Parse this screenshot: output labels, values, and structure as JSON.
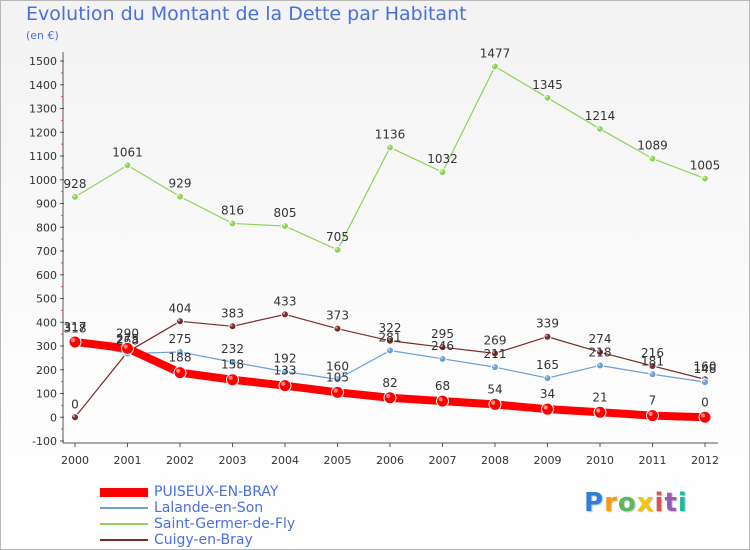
{
  "title": "Evolution du Montant de la Dette par Habitant",
  "subtitle": "(en €)",
  "logo": {
    "text": "Proxiti",
    "colors": [
      "#2f7ed8",
      "#f39c12",
      "#5cb85c",
      "#f1c40f",
      "#d9534f",
      "#9b59b6",
      "#1abc9c"
    ]
  },
  "chart_data": {
    "type": "line",
    "x": [
      "2000",
      "2001",
      "2002",
      "2003",
      "2004",
      "2005",
      "2006",
      "2007",
      "2008",
      "2009",
      "2010",
      "2011",
      "2012"
    ],
    "ylim": [
      -100,
      1500
    ],
    "yticks": [
      -100,
      0,
      100,
      200,
      300,
      400,
      500,
      600,
      700,
      800,
      900,
      1000,
      1100,
      1200,
      1300,
      1400,
      1500
    ],
    "grid": false,
    "legend_position": "bottom-left",
    "series": [
      {
        "name": "PUISEUX-EN-BRAY",
        "color": "#ff0000",
        "width": 8,
        "marker_radius": 6,
        "values": [
          317,
          290,
          188,
          158,
          133,
          105,
          82,
          68,
          54,
          34,
          21,
          7,
          0
        ]
      },
      {
        "name": "Lalande-en-Son",
        "color": "#6a9fd8",
        "width": 1.2,
        "marker_radius": 3.5,
        "values": [
          318,
          268,
          275,
          232,
          192,
          160,
          281,
          246,
          211,
          165,
          218,
          181,
          148
        ]
      },
      {
        "name": "Saint-Germer-de-Fly",
        "color": "#8fd35a",
        "width": 1.2,
        "marker_radius": 3.5,
        "values": [
          928,
          1061,
          929,
          816,
          805,
          705,
          1136,
          1032,
          1477,
          1345,
          1214,
          1089,
          1005
        ]
      },
      {
        "name": "Cuigy-en-Bray",
        "color": "#7a2a2a",
        "width": 1.2,
        "marker_radius": 3.5,
        "values": [
          0,
          275,
          404,
          383,
          433,
          373,
          322,
          295,
          269,
          339,
          274,
          216,
          160
        ]
      }
    ]
  }
}
